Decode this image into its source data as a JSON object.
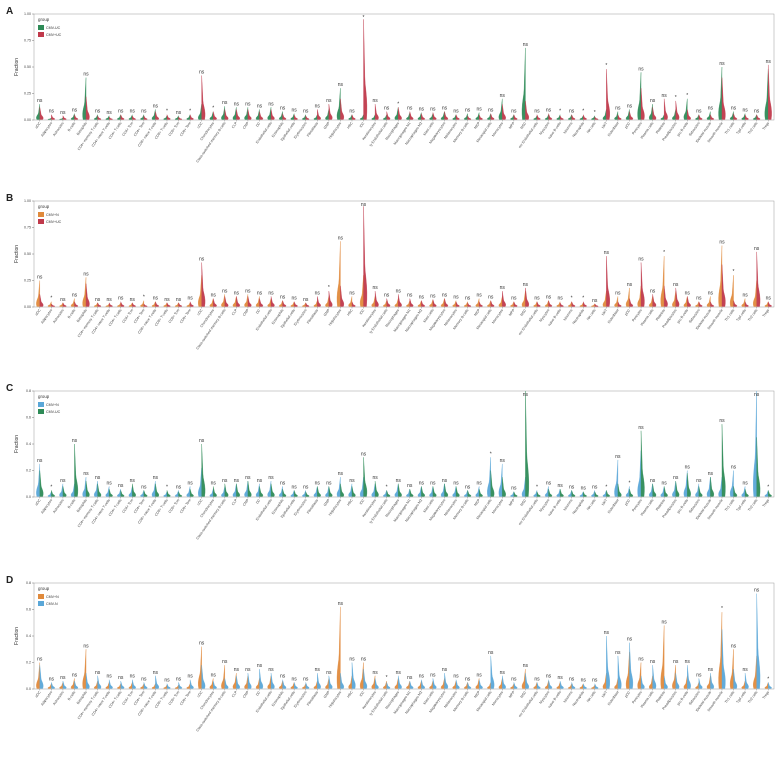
{
  "chart_data": [
    {
      "panel": "A",
      "type": "violin",
      "ylabel": "Fraction",
      "yticks": [
        "0.00",
        "0.25",
        "0.50",
        "0.75",
        "1.00"
      ],
      "ylim": [
        0,
        1.0
      ],
      "legend": {
        "title": "group",
        "position": "top-left"
      },
      "series": [
        {
          "name": "CMV-UC",
          "color": "#2e8b57"
        },
        {
          "name": "CMV+UC",
          "color": "#c0394b"
        }
      ],
      "categories": [
        "aDC",
        "Adipocytes",
        "Astrocytes",
        "B-cells",
        "Basophils",
        "CD4+ memory T-cells",
        "CD4+ naive T-cells",
        "CD4+ T-cells",
        "CD4+ Tcm",
        "CD4+ Tem",
        "CD8+ naive T-cells",
        "CD8+ T-cells",
        "CD8+ Tcm",
        "CD8+ Tem",
        "cDC",
        "Chondrocytes",
        "Class-switched memory B-cells",
        "CLP",
        "CMP",
        "DC",
        "Endothelial cells",
        "Eosinophils",
        "Epithelial cells",
        "Erythrocytes",
        "Fibroblasts",
        "GMP",
        "Hepatocytes",
        "HSC",
        "iDC",
        "Keratinocytes",
        "ly Endothelial cells",
        "Macrophages",
        "Macrophages M1",
        "Macrophages M2",
        "Mast cells",
        "Megakaryocytes",
        "Melanocytes",
        "Memory B-cells",
        "MEP",
        "Mesangial cells",
        "Monocytes",
        "MPP",
        "MSC",
        "mv Endothelial cells",
        "Myocytes",
        "naive B-cells",
        "Neurons",
        "Neutrophils",
        "NK cells",
        "NKT",
        "Osteoblast",
        "pDC",
        "Pericytes",
        "Plasma cells",
        "Platelets",
        "Preadipocytes",
        "pro B-cells",
        "Sebocytes",
        "Skeletal muscle",
        "Smooth muscle",
        "Th1 cells",
        "Tgd cells",
        "Th2 cells",
        "Tregs"
      ],
      "red_labels": [
        "CD8+ naive T-cells",
        "CD8+ T-cells",
        "Chondrocytes",
        "iDC",
        "Keratinocytes",
        "Myocytes",
        "Neurons",
        "Neutrophils",
        "Platelets",
        "Preadipocytes",
        "pro B-cells"
      ],
      "significance": [
        "ns",
        "ns",
        "ns",
        "ns",
        "ns",
        "ns",
        "ns",
        "ns",
        "ns",
        "ns",
        "ns",
        "*",
        "ns",
        "*",
        "ns",
        "*",
        "ns",
        "ns",
        "ns",
        "ns",
        "ns",
        "ns",
        "ns",
        "ns",
        "ns",
        "ns",
        "ns",
        "ns",
        "*",
        "ns",
        "ns",
        "*",
        "ns",
        "ns",
        "ns",
        "ns",
        "ns",
        "ns",
        "ns",
        "ns",
        "ns",
        "ns",
        "ns",
        "ns",
        "ns",
        "*",
        "ns",
        "*",
        "*",
        "*",
        "ns",
        "ns",
        "ns",
        "ns",
        "ns",
        "*",
        "*",
        "ns",
        "ns",
        "ns",
        "ns",
        "ns",
        "ns",
        "ns"
      ],
      "values_a": [
        0.15,
        0.02,
        0.02,
        0.06,
        0.4,
        0.05,
        0.04,
        0.05,
        0.05,
        0.05,
        0.1,
        0.04,
        0.04,
        0.05,
        0.15,
        0.08,
        0.13,
        0.12,
        0.12,
        0.1,
        0.12,
        0.08,
        0.06,
        0.05,
        0.05,
        0.1,
        0.3,
        0.05,
        0.05,
        0.05,
        0.05,
        0.12,
        0.07,
        0.07,
        0.06,
        0.08,
        0.05,
        0.06,
        0.07,
        0.06,
        0.2,
        0.05,
        0.68,
        0.04,
        0.05,
        0.05,
        0.05,
        0.04,
        0.04,
        0.1,
        0.08,
        0.1,
        0.45,
        0.15,
        0.05,
        0.1,
        0.2,
        0.05,
        0.08,
        0.5,
        0.08,
        0.06,
        0.05,
        0.48
      ],
      "values_b": [
        0.12,
        0.05,
        0.04,
        0.05,
        0.22,
        0.04,
        0.03,
        0.05,
        0.04,
        0.04,
        0.08,
        0.05,
        0.03,
        0.05,
        0.42,
        0.08,
        0.1,
        0.1,
        0.1,
        0.08,
        0.1,
        0.06,
        0.05,
        0.04,
        0.1,
        0.15,
        0.2,
        0.05,
        0.95,
        0.15,
        0.08,
        0.12,
        0.08,
        0.06,
        0.07,
        0.08,
        0.05,
        0.04,
        0.05,
        0.06,
        0.15,
        0.05,
        0.18,
        0.05,
        0.06,
        0.04,
        0.05,
        0.05,
        0.03,
        0.48,
        0.05,
        0.08,
        0.3,
        0.12,
        0.2,
        0.18,
        0.1,
        0.05,
        0.05,
        0.4,
        0.06,
        0.05,
        0.05,
        0.52
      ]
    },
    {
      "panel": "B",
      "type": "violin",
      "ylabel": "Fraction",
      "yticks": [
        "0.00",
        "0.25",
        "0.50",
        "0.75",
        "1.00"
      ],
      "ylim": [
        0,
        1.0
      ],
      "legend": {
        "title": "group",
        "position": "top-left"
      },
      "series": [
        {
          "name": "CMV+N",
          "color": "#e08a3c"
        },
        {
          "name": "CMV+UC",
          "color": "#c0394b"
        }
      ],
      "categories": [
        "aDC",
        "Adipocytes",
        "Astrocytes",
        "B-cells",
        "Basophils",
        "CD4+ memory T-cells",
        "CD4+ naive T-cells",
        "CD4+ T-cells",
        "CD4+ Tcm",
        "CD4+ Tem",
        "CD8+ naive T-cells",
        "CD8+ T-cells",
        "CD8+ Tcm",
        "CD8+ Tem",
        "cDC",
        "Chondrocytes",
        "Class-switched memory B-cells",
        "CLP",
        "CMP",
        "DC",
        "Endothelial cells",
        "Eosinophils",
        "Epithelial cells",
        "Erythrocytes",
        "Fibroblasts",
        "GMP",
        "Hepatocytes",
        "HSC",
        "iDC",
        "Keratinocytes",
        "ly Endothelial cells",
        "Macrophages",
        "Macrophages M1",
        "Macrophages M2",
        "Mast cells",
        "Megakaryocytes",
        "Melanocytes",
        "Memory B-cells",
        "MEP",
        "Mesangial cells",
        "Monocytes",
        "MPP",
        "MSC",
        "mv Endothelial cells",
        "Myocytes",
        "naive B-cells",
        "Neurons",
        "Neutrophils",
        "NK cells",
        "NKT",
        "Osteoblast",
        "pDC",
        "Pericytes",
        "Plasma cells",
        "Platelets",
        "Preadipocytes",
        "pro B-cells",
        "Sebocytes",
        "Skeletal muscle",
        "Smooth muscle",
        "Th1 cells",
        "Tgd cells",
        "Th2 cells",
        "Tregs"
      ],
      "red_labels": [
        "Adipocytes",
        "CD4+ Tem",
        "CD8+ T-cells",
        "GMP",
        "Neurons",
        "Neutrophils",
        "Platelets",
        "Th1 cells",
        "Tgd cells"
      ],
      "significance": [
        "ns",
        "*",
        "ns",
        "ns",
        "ns",
        "ns",
        "ns",
        "ns",
        "ns",
        "*",
        "ns",
        "ns",
        "ns",
        "ns",
        "ns",
        "ns",
        "ns",
        "ns",
        "ns",
        "ns",
        "ns",
        "ns",
        "ns",
        "ns",
        "ns",
        "*",
        "ns",
        "ns",
        "ns",
        "ns",
        "ns",
        "ns",
        "ns",
        "ns",
        "ns",
        "ns",
        "ns",
        "ns",
        "ns",
        "ns",
        "ns",
        "ns",
        "ns",
        "ns",
        "ns",
        "ns",
        "*",
        "*",
        "ns",
        "ns",
        "ns",
        "ns",
        "ns",
        "ns",
        "*",
        "ns",
        "ns",
        "ns",
        "ns",
        "ns",
        "*",
        "ns",
        "ns",
        "ns"
      ],
      "values_a": [
        0.25,
        0.05,
        0.04,
        0.08,
        0.28,
        0.04,
        0.03,
        0.04,
        0.04,
        0.06,
        0.05,
        0.04,
        0.04,
        0.04,
        0.3,
        0.08,
        0.12,
        0.1,
        0.12,
        0.1,
        0.08,
        0.06,
        0.05,
        0.04,
        0.06,
        0.1,
        0.62,
        0.1,
        0.3,
        0.1,
        0.06,
        0.08,
        0.06,
        0.06,
        0.07,
        0.08,
        0.06,
        0.05,
        0.08,
        0.06,
        0.1,
        0.05,
        0.15,
        0.05,
        0.06,
        0.05,
        0.05,
        0.04,
        0.03,
        0.15,
        0.1,
        0.18,
        0.2,
        0.1,
        0.48,
        0.15,
        0.1,
        0.05,
        0.1,
        0.58,
        0.3,
        0.08,
        0.25,
        0.05
      ],
      "values_b": [
        0.12,
        0.03,
        0.04,
        0.05,
        0.22,
        0.04,
        0.04,
        0.05,
        0.04,
        0.03,
        0.05,
        0.04,
        0.04,
        0.05,
        0.42,
        0.08,
        0.1,
        0.1,
        0.1,
        0.08,
        0.1,
        0.06,
        0.05,
        0.04,
        0.1,
        0.15,
        0.2,
        0.05,
        0.95,
        0.15,
        0.08,
        0.12,
        0.08,
        0.06,
        0.07,
        0.08,
        0.05,
        0.04,
        0.05,
        0.06,
        0.15,
        0.05,
        0.18,
        0.05,
        0.06,
        0.04,
        0.05,
        0.05,
        0.03,
        0.48,
        0.05,
        0.08,
        0.42,
        0.12,
        0.2,
        0.18,
        0.1,
        0.05,
        0.05,
        0.4,
        0.06,
        0.05,
        0.52,
        0.05
      ]
    },
    {
      "panel": "C",
      "type": "violin",
      "ylabel": "Fraction",
      "yticks": [
        "0.0",
        "0.2",
        "0.4",
        "0.6",
        "0.8"
      ],
      "ylim": [
        0,
        0.8
      ],
      "legend": {
        "title": "group",
        "position": "top-left"
      },
      "series": [
        {
          "name": "CMV+N",
          "color": "#5aa7d8"
        },
        {
          "name": "CMV-UC",
          "color": "#2e8b57"
        }
      ],
      "categories": [
        "aDC",
        "Adipocytes",
        "Astrocytes",
        "B-cells",
        "Basophils",
        "CD4+ memory T-cells",
        "CD4+ naive T-cells",
        "CD4+ T-cells",
        "CD4+ Tcm",
        "CD4+ Tem",
        "CD8+ naive T-cells",
        "CD8+ T-cells",
        "CD8+ Tcm",
        "CD8+ Tem",
        "cDC",
        "Chondrocytes",
        "Class-switched memory B-cells",
        "CLP",
        "CMP",
        "DC",
        "Endothelial cells",
        "Eosinophils",
        "Epithelial cells",
        "Erythrocytes",
        "Fibroblasts",
        "GMP",
        "Hepatocytes",
        "HSC",
        "iDC",
        "Keratinocytes",
        "ly Endothelial cells",
        "Macrophages",
        "Macrophages M1",
        "Macrophages M2",
        "Mast cells",
        "Megakaryocytes",
        "Melanocytes",
        "Memory B-cells",
        "MEP",
        "Mesangial cells",
        "Monocytes",
        "MPP",
        "MSC",
        "mv Endothelial cells",
        "Myocytes",
        "naive B-cells",
        "Neurons",
        "Neutrophils",
        "NK cells",
        "NKT",
        "Osteoblast",
        "pDC",
        "Pericytes",
        "Plasma cells",
        "Platelets",
        "Preadipocytes",
        "pro B-cells",
        "Sebocytes",
        "Skeletal muscle",
        "Smooth muscle",
        "Th1 cells",
        "Tgd cells",
        "Th2 cells",
        "Tregs"
      ],
      "red_labels": [
        "Adipocytes",
        "CD8+ T-cells",
        "ly Endothelial cells",
        "Mesangial cells",
        "mv Endothelial cells",
        "NKT",
        "pDC",
        "Tregs"
      ],
      "significance": [
        "ns",
        "*",
        "ns",
        "ns",
        "ns",
        "ns",
        "ns",
        "ns",
        "ns",
        "ns",
        "ns",
        "*",
        "ns",
        "ns",
        "ns",
        "ns",
        "ns",
        "ns",
        "ns",
        "ns",
        "ns",
        "ns",
        "ns",
        "ns",
        "ns",
        "ns",
        "ns",
        "ns",
        "ns",
        "ns",
        "*",
        "ns",
        "ns",
        "ns",
        "ns",
        "ns",
        "ns",
        "ns",
        "ns",
        "*",
        "ns",
        "ns",
        "ns",
        "*",
        "ns",
        "ns",
        "ns",
        "ns",
        "ns",
        "*",
        "ns",
        "*",
        "ns",
        "ns",
        "ns",
        "ns",
        "ns",
        "ns",
        "ns",
        "ns",
        "ns",
        "ns",
        "ns",
        "*"
      ],
      "values_a": [
        0.25,
        0.04,
        0.1,
        0.1,
        0.15,
        0.12,
        0.08,
        0.06,
        0.08,
        0.05,
        0.12,
        0.04,
        0.05,
        0.08,
        0.22,
        0.06,
        0.08,
        0.1,
        0.12,
        0.1,
        0.12,
        0.08,
        0.05,
        0.05,
        0.08,
        0.08,
        0.15,
        0.1,
        0.15,
        0.1,
        0.05,
        0.1,
        0.06,
        0.08,
        0.08,
        0.1,
        0.08,
        0.05,
        0.08,
        0.3,
        0.25,
        0.04,
        0.15,
        0.05,
        0.08,
        0.06,
        0.05,
        0.04,
        0.05,
        0.05,
        0.28,
        0.08,
        0.35,
        0.1,
        0.08,
        0.12,
        0.2,
        0.1,
        0.15,
        0.15,
        0.2,
        0.08,
        0.8,
        0.05
      ],
      "values_b": [
        0.2,
        0.05,
        0.08,
        0.4,
        0.12,
        0.1,
        0.06,
        0.05,
        0.1,
        0.05,
        0.1,
        0.05,
        0.04,
        0.06,
        0.4,
        0.08,
        0.1,
        0.1,
        0.12,
        0.08,
        0.1,
        0.06,
        0.05,
        0.04,
        0.08,
        0.08,
        0.1,
        0.08,
        0.3,
        0.12,
        0.05,
        0.1,
        0.06,
        0.08,
        0.08,
        0.1,
        0.08,
        0.05,
        0.06,
        0.2,
        0.15,
        0.04,
        0.8,
        0.04,
        0.06,
        0.06,
        0.05,
        0.04,
        0.04,
        0.05,
        0.1,
        0.06,
        0.5,
        0.1,
        0.08,
        0.12,
        0.18,
        0.08,
        0.15,
        0.55,
        0.08,
        0.06,
        0.45,
        0.05
      ]
    },
    {
      "panel": "D",
      "type": "violin",
      "ylabel": "Fraction",
      "yticks": [
        "0.0",
        "0.2",
        "0.4",
        "0.6",
        "0.8"
      ],
      "ylim": [
        0,
        0.8
      ],
      "legend": {
        "title": "group",
        "position": "top-left"
      },
      "series": [
        {
          "name": "CMV+N",
          "color": "#e08a3c"
        },
        {
          "name": "CMV-N",
          "color": "#5aa7d8"
        }
      ],
      "categories": [
        "aDC",
        "Adipocytes",
        "Astrocytes",
        "B-cells",
        "Basophils",
        "CD4+ memory T-cells",
        "CD4+ naive T-cells",
        "CD4+ T-cells",
        "CD4+ Tcm",
        "CD4+ Tem",
        "CD8+ naive T-cells",
        "CD8+ T-cells",
        "CD8+ Tcm",
        "CD8+ Tem",
        "cDC",
        "Chondrocytes",
        "Class-switched memory B-cells",
        "CLP",
        "CMP",
        "DC",
        "Endothelial cells",
        "Eosinophils",
        "Epithelial cells",
        "Erythrocytes",
        "Fibroblasts",
        "GMP",
        "Hepatocytes",
        "HSC",
        "iDC",
        "Keratinocytes",
        "ly Endothelial cells",
        "Macrophages",
        "Macrophages M1",
        "Macrophages M2",
        "Mast cells",
        "Megakaryocytes",
        "Melanocytes",
        "Memory B-cells",
        "MEP",
        "Mesangial cells",
        "Monocytes",
        "MPP",
        "MSC",
        "mv Endothelial cells",
        "Myocytes",
        "naive B-cells",
        "Neurons",
        "Neutrophils",
        "NK cells",
        "NKT",
        "Osteoblast",
        "pDC",
        "Pericytes",
        "Plasma cells",
        "Platelets",
        "Preadipocytes",
        "pro B-cells",
        "Sebocytes",
        "Skeletal muscle",
        "Smooth muscle",
        "Th1 cells",
        "Tgd cells",
        "Th2 cells",
        "Tregs"
      ],
      "red_labels": [
        "ly Endothelial cells",
        "Smooth muscle",
        "Tregs"
      ],
      "significance": [
        "ns",
        "ns",
        "ns",
        "ns",
        "ns",
        "ns",
        "ns",
        "ns",
        "ns",
        "ns",
        "ns",
        "ns",
        "ns",
        "ns",
        "ns",
        "ns",
        "ns",
        "ns",
        "ns",
        "ns",
        "ns",
        "ns",
        "ns",
        "ns",
        "ns",
        "ns",
        "ns",
        "ns",
        "ns",
        "ns",
        "*",
        "ns",
        "ns",
        "ns",
        "ns",
        "ns",
        "ns",
        "ns",
        "ns",
        "ns",
        "ns",
        "ns",
        "ns",
        "ns",
        "ns",
        "ns",
        "ns",
        "ns",
        "ns",
        "ns",
        "ns",
        "ns",
        "ns",
        "ns",
        "ns",
        "ns",
        "ns",
        "ns",
        "ns",
        "*",
        "ns",
        "ns",
        "ns",
        "*"
      ],
      "values_a": [
        0.2,
        0.04,
        0.05,
        0.08,
        0.3,
        0.06,
        0.05,
        0.04,
        0.05,
        0.04,
        0.04,
        0.03,
        0.03,
        0.04,
        0.32,
        0.08,
        0.18,
        0.12,
        0.1,
        0.08,
        0.1,
        0.06,
        0.05,
        0.04,
        0.06,
        0.08,
        0.62,
        0.1,
        0.2,
        0.1,
        0.06,
        0.08,
        0.06,
        0.06,
        0.06,
        0.08,
        0.06,
        0.05,
        0.08,
        0.05,
        0.08,
        0.04,
        0.15,
        0.05,
        0.06,
        0.05,
        0.04,
        0.04,
        0.03,
        0.12,
        0.08,
        0.28,
        0.2,
        0.1,
        0.48,
        0.18,
        0.1,
        0.05,
        0.1,
        0.58,
        0.3,
        0.06,
        0.25,
        0.05
      ],
      "values_b": [
        0.18,
        0.05,
        0.06,
        0.06,
        0.12,
        0.1,
        0.07,
        0.06,
        0.07,
        0.05,
        0.1,
        0.04,
        0.05,
        0.07,
        0.18,
        0.06,
        0.08,
        0.1,
        0.12,
        0.15,
        0.12,
        0.07,
        0.05,
        0.05,
        0.12,
        0.1,
        0.12,
        0.2,
        0.15,
        0.08,
        0.05,
        0.1,
        0.06,
        0.07,
        0.08,
        0.12,
        0.07,
        0.05,
        0.07,
        0.25,
        0.1,
        0.05,
        0.12,
        0.05,
        0.07,
        0.06,
        0.05,
        0.04,
        0.04,
        0.4,
        0.25,
        0.35,
        0.1,
        0.18,
        0.1,
        0.12,
        0.18,
        0.08,
        0.12,
        0.45,
        0.15,
        0.12,
        0.72,
        0.05
      ]
    }
  ]
}
